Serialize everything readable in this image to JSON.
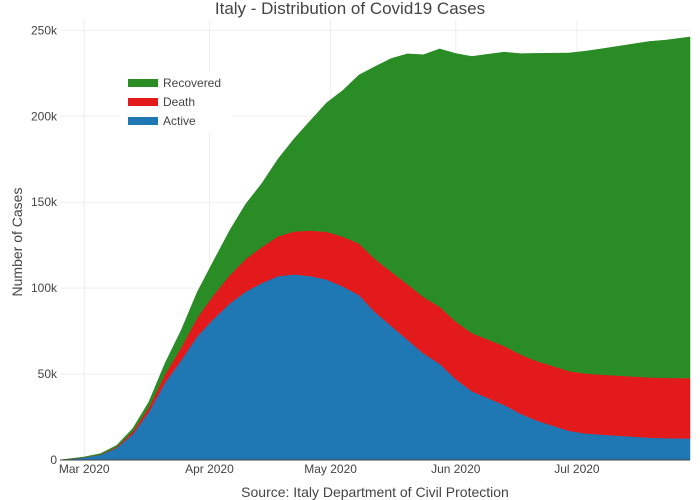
{
  "chart_data": {
    "type": "area",
    "title": "Italy - Distribution of Covid19 Cases",
    "xlabel": "Source: Italy Department of Civil Protection",
    "ylabel": "Number of Cases",
    "stacked": true,
    "grid": true,
    "legend_position": "top-left",
    "xlim": [
      "2020-02-24",
      "2020-07-29"
    ],
    "ylim": [
      0,
      256000
    ],
    "x_ticks": [
      {
        "date": "2020-03-01",
        "label": "Mar 2020"
      },
      {
        "date": "2020-04-01",
        "label": "Apr 2020"
      },
      {
        "date": "2020-05-01",
        "label": "May 2020"
      },
      {
        "date": "2020-06-01",
        "label": "Jun 2020"
      },
      {
        "date": "2020-07-01",
        "label": "Jul 2020"
      }
    ],
    "y_ticks": [
      {
        "value": 0,
        "label": "0"
      },
      {
        "value": 50000,
        "label": "50k"
      },
      {
        "value": 100000,
        "label": "100k"
      },
      {
        "value": 150000,
        "label": "150k"
      },
      {
        "value": 200000,
        "label": "200k"
      },
      {
        "value": 250000,
        "label": "250k"
      }
    ],
    "x": [
      "2020-02-24",
      "2020-03-01",
      "2020-03-05",
      "2020-03-09",
      "2020-03-13",
      "2020-03-17",
      "2020-03-21",
      "2020-03-25",
      "2020-03-29",
      "2020-04-02",
      "2020-04-06",
      "2020-04-10",
      "2020-04-14",
      "2020-04-18",
      "2020-04-22",
      "2020-04-26",
      "2020-04-30",
      "2020-05-04",
      "2020-05-08",
      "2020-05-12",
      "2020-05-16",
      "2020-05-20",
      "2020-05-24",
      "2020-05-28",
      "2020-06-01",
      "2020-06-05",
      "2020-06-09",
      "2020-06-13",
      "2020-06-17",
      "2020-06-21",
      "2020-06-25",
      "2020-06-29",
      "2020-07-03",
      "2020-07-07",
      "2020-07-11",
      "2020-07-15",
      "2020-07-19",
      "2020-07-23",
      "2020-07-29"
    ],
    "series": [
      {
        "name": "Active",
        "color": "#1f77b4",
        "values": [
          0,
          1500,
          3000,
          7000,
          15000,
          28000,
          45000,
          58000,
          72000,
          82000,
          91000,
          98000,
          103000,
          107000,
          108000,
          107000,
          105000,
          101000,
          96000,
          86000,
          78000,
          70000,
          62000,
          56000,
          47000,
          40000,
          36000,
          32000,
          27000,
          23000,
          20000,
          17000,
          15500,
          14800,
          14200,
          13600,
          13000,
          12700,
          12500
        ]
      },
      {
        "name": "Death",
        "color": "#e31a1c",
        "values": [
          0,
          100,
          200,
          600,
          1500,
          2600,
          4800,
          7500,
          10800,
          13900,
          16500,
          19000,
          21000,
          23200,
          25000,
          26500,
          27800,
          29000,
          30000,
          30900,
          31600,
          32300,
          32800,
          33200,
          33500,
          33800,
          34100,
          34300,
          34450,
          34600,
          34700,
          34800,
          34850,
          34900,
          34950,
          35000,
          35050,
          35100,
          35150
        ]
      },
      {
        "name": "Recovered",
        "color": "#2a8c25",
        "values": [
          0,
          200,
          500,
          900,
          1800,
          3200,
          6500,
          10000,
          15000,
          19900,
          26000,
          32000,
          37000,
          45000,
          54000,
          64000,
          75000,
          85000,
          98000,
          112000,
          124000,
          134000,
          141000,
          150000,
          156000,
          161000,
          166000,
          171000,
          175000,
          179000,
          182000,
          185000,
          187500,
          189500,
          191500,
          193500,
          195500,
          196500,
          198500
        ]
      }
    ]
  }
}
